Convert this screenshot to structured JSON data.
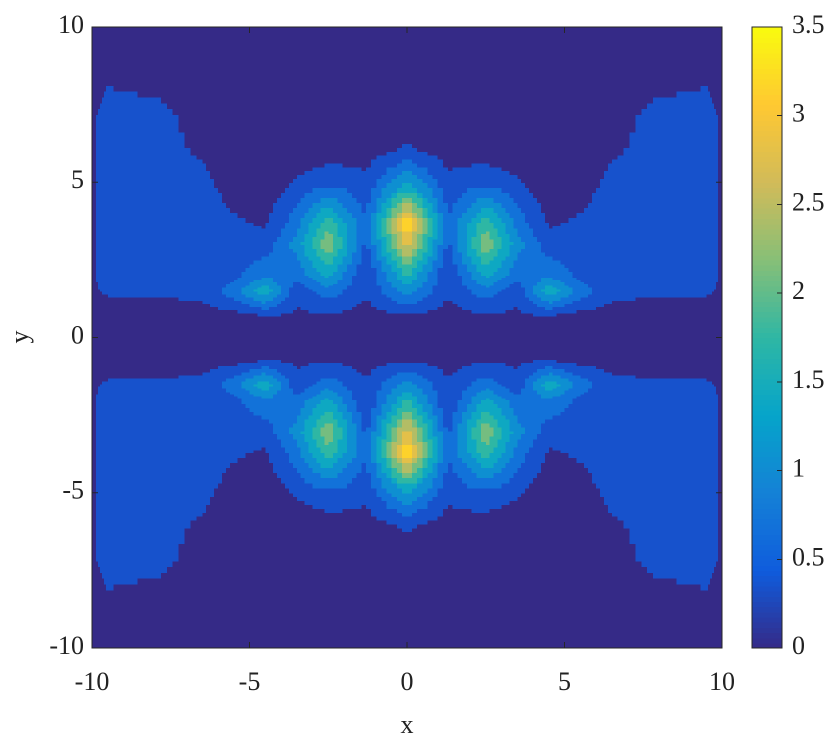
{
  "chart_data": {
    "type": "contourf",
    "x_label": "x",
    "y_label": "y",
    "xlim": [
      -10,
      10
    ],
    "ylim": [
      -10,
      10
    ],
    "xticks": [
      -10,
      -5,
      0,
      5,
      10
    ],
    "yticks": [
      -10,
      -5,
      0,
      5,
      10
    ],
    "clim": [
      0,
      3.5
    ],
    "cticks": [
      0,
      0.5,
      1,
      1.5,
      2,
      2.5,
      3,
      3.5
    ],
    "levels": [
      0,
      0.35,
      0.7,
      1.05,
      1.4,
      1.75,
      2.1,
      2.45,
      2.8,
      3.15
    ],
    "colormap": [
      "#352a87",
      "#0f5cdd",
      "#1481d6",
      "#06a4ca",
      "#2eb7a4",
      "#87bf77",
      "#d1bb59",
      "#fec832",
      "#f9fb0e"
    ],
    "x": [
      -10,
      -9.5,
      -8,
      -6.5,
      -5.5,
      -4.5,
      -3.5,
      -2.5,
      -1.3,
      0,
      1.3,
      2.5,
      3.5,
      4.5,
      5.5,
      6.5,
      8,
      9.5,
      10
    ],
    "y": [
      -10,
      -8.5,
      -7,
      -6,
      -5,
      -3.7,
      -3,
      -2,
      -1.5,
      -0.7,
      0,
      0.7,
      1.5,
      2,
      3,
      3.7,
      5,
      6,
      7,
      8.5,
      10
    ],
    "z": [
      [
        0,
        0,
        0,
        0,
        0,
        0,
        0,
        0,
        0,
        0,
        0,
        0,
        0,
        0,
        0,
        0,
        0,
        0,
        0
      ],
      [
        0.1,
        0.3,
        0.2,
        0,
        0,
        0,
        0,
        0,
        0,
        0,
        0,
        0,
        0,
        0,
        0,
        0,
        0.2,
        0.3,
        0.1
      ],
      [
        0.3,
        0.5,
        0.5,
        0.2,
        0,
        0,
        0,
        0,
        0,
        0,
        0,
        0,
        0,
        0,
        0,
        0.2,
        0.5,
        0.5,
        0.3
      ],
      [
        0.3,
        0.5,
        0.5,
        0.3,
        0.1,
        0,
        0.1,
        0.2,
        0.2,
        0.45,
        0.2,
        0.2,
        0.1,
        0,
        0.1,
        0.3,
        0.5,
        0.5,
        0.3
      ],
      [
        0.3,
        0.5,
        0.5,
        0.45,
        0.2,
        0.1,
        0.4,
        0.6,
        0.45,
        1.4,
        0.45,
        0.6,
        0.4,
        0.1,
        0.2,
        0.45,
        0.5,
        0.5,
        0.3
      ],
      [
        0.3,
        0.5,
        0.5,
        0.5,
        0.4,
        0.3,
        0.9,
        2.0,
        0.7,
        3.5,
        0.7,
        2.0,
        0.9,
        0.3,
        0.4,
        0.5,
        0.5,
        0.5,
        0.3
      ],
      [
        0.3,
        0.5,
        0.5,
        0.5,
        0.45,
        0.5,
        1.2,
        2.4,
        0.6,
        3.0,
        0.6,
        2.4,
        1.2,
        0.5,
        0.45,
        0.5,
        0.5,
        0.5,
        0.3
      ],
      [
        0.3,
        0.5,
        0.5,
        0.5,
        0.6,
        1.0,
        0.8,
        1.5,
        0.3,
        1.8,
        0.3,
        1.5,
        0.8,
        1.0,
        0.6,
        0.5,
        0.5,
        0.5,
        0.3
      ],
      [
        0.3,
        0.4,
        0.4,
        0.45,
        0.9,
        1.7,
        0.4,
        0.9,
        0.4,
        1.2,
        0.4,
        0.9,
        0.4,
        1.7,
        0.9,
        0.45,
        0.4,
        0.4,
        0.3
      ],
      [
        0.1,
        0.15,
        0.15,
        0.2,
        0.2,
        0.3,
        0.3,
        0.3,
        0.2,
        0.3,
        0.2,
        0.3,
        0.3,
        0.3,
        0.2,
        0.2,
        0.15,
        0.15,
        0.1
      ],
      [
        0,
        0,
        0,
        0,
        0,
        0,
        0,
        0,
        0,
        0,
        0,
        0,
        0,
        0,
        0,
        0,
        0,
        0,
        0
      ],
      [
        0.1,
        0.15,
        0.15,
        0.2,
        0.2,
        0.3,
        0.3,
        0.3,
        0.2,
        0.3,
        0.2,
        0.3,
        0.3,
        0.3,
        0.2,
        0.2,
        0.15,
        0.15,
        0.1
      ],
      [
        0.3,
        0.4,
        0.4,
        0.45,
        0.9,
        1.7,
        0.4,
        0.9,
        0.4,
        1.2,
        0.4,
        0.9,
        0.4,
        1.7,
        0.9,
        0.45,
        0.4,
        0.4,
        0.3
      ],
      [
        0.3,
        0.5,
        0.5,
        0.5,
        0.6,
        1.0,
        0.8,
        1.5,
        0.3,
        1.8,
        0.3,
        1.5,
        0.8,
        1.0,
        0.6,
        0.5,
        0.5,
        0.5,
        0.3
      ],
      [
        0.3,
        0.5,
        0.5,
        0.5,
        0.45,
        0.5,
        1.2,
        2.4,
        0.6,
        3.0,
        0.6,
        2.4,
        1.2,
        0.5,
        0.45,
        0.5,
        0.5,
        0.5,
        0.3
      ],
      [
        0.3,
        0.5,
        0.5,
        0.5,
        0.4,
        0.3,
        0.9,
        2.0,
        0.7,
        3.5,
        0.7,
        2.0,
        0.9,
        0.3,
        0.4,
        0.5,
        0.5,
        0.5,
        0.3
      ],
      [
        0.3,
        0.5,
        0.5,
        0.45,
        0.2,
        0.1,
        0.4,
        0.6,
        0.45,
        1.4,
        0.45,
        0.6,
        0.4,
        0.1,
        0.2,
        0.45,
        0.5,
        0.5,
        0.3
      ],
      [
        0.3,
        0.5,
        0.5,
        0.3,
        0.1,
        0,
        0.1,
        0.2,
        0.2,
        0.45,
        0.2,
        0.2,
        0.1,
        0,
        0.1,
        0.3,
        0.5,
        0.5,
        0.3
      ],
      [
        0.3,
        0.5,
        0.5,
        0.2,
        0,
        0,
        0,
        0,
        0,
        0,
        0,
        0,
        0,
        0,
        0,
        0.2,
        0.5,
        0.5,
        0.3
      ],
      [
        0.1,
        0.3,
        0.2,
        0,
        0,
        0,
        0,
        0,
        0,
        0,
        0,
        0,
        0,
        0,
        0,
        0,
        0.2,
        0.3,
        0.1
      ],
      [
        0,
        0,
        0,
        0,
        0,
        0,
        0,
        0,
        0,
        0,
        0,
        0,
        0,
        0,
        0,
        0,
        0,
        0,
        0
      ]
    ]
  }
}
